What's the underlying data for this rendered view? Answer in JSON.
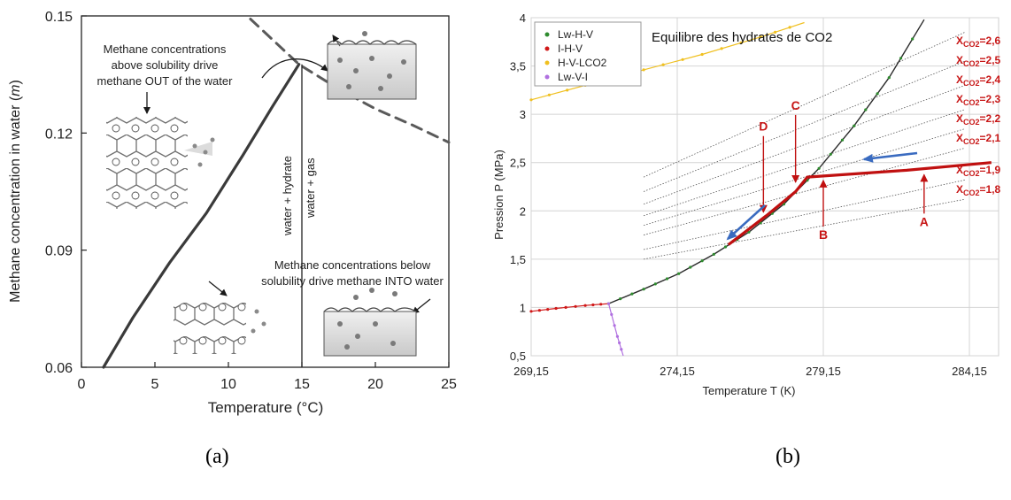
{
  "captions": {
    "left": "(a)",
    "right": "(b)"
  },
  "chart_data": [
    {
      "type": "line",
      "xlabel": "Temperature (°C)",
      "ylabel": "Methane concentration in water (",
      "ylabel_italic": "m",
      "ylabel_close": ")",
      "xlim": [
        0,
        25
      ],
      "ylim": [
        0.06,
        0.15
      ],
      "xticks": [
        0,
        5,
        10,
        15,
        20,
        25
      ],
      "yticks": [
        0.06,
        0.09,
        0.12,
        0.15
      ],
      "ytick_labels": [
        "0.06",
        "0.09",
        "0.12",
        "0.15"
      ],
      "series": [
        {
          "style": "solid",
          "x": [
            1.5,
            3.5,
            6,
            8.5,
            11,
            13,
            14.8
          ],
          "y": [
            0.06,
            0.0727,
            0.0868,
            0.0995,
            0.1144,
            0.1268,
            0.1376
          ]
        },
        {
          "style": "dashed",
          "x": [
            11.5,
            14.8,
            17.5,
            20,
            22.5,
            25
          ],
          "y": [
            0.1492,
            0.1376,
            0.1313,
            0.1262,
            0.1221,
            0.1176
          ]
        }
      ],
      "phase_labels": [
        "water + hydrate",
        "water + gas"
      ],
      "annotations": {
        "top": [
          "Methane concentrations",
          "above solubility drive",
          "methane OUT of the water"
        ],
        "bottom": [
          "Methane concentrations below",
          "solubility drive methane INTO water"
        ]
      },
      "colors": {
        "curve": "#3a3a3a",
        "dashed": "#5a5a5a"
      }
    },
    {
      "type": "line",
      "title": "Equilibre des hydrates de CO2",
      "xlabel": "Temperature T (K)",
      "ylabel": "Pression P (MPa)",
      "xlim": [
        269.15,
        285.15
      ],
      "ylim": [
        0.5,
        4
      ],
      "xticks": [
        269.15,
        274.15,
        279.15,
        284.15
      ],
      "xtick_labels": [
        "269,15",
        "274,15",
        "279,15",
        "284,15"
      ],
      "yticks": [
        0.5,
        1,
        1.5,
        2,
        2.5,
        3,
        3.5,
        4
      ],
      "ytick_labels": [
        "0,5",
        "1",
        "1,5",
        "2",
        "2,5",
        "3",
        "3,5",
        "4"
      ],
      "legend": {
        "position": "top-left",
        "entries": [
          {
            "label": "Lw-H-V",
            "color": "#2e8b2e"
          },
          {
            "label": "I-H-V",
            "color": "#d01818"
          },
          {
            "label": "H-V-LCO2",
            "color": "#f0c020"
          },
          {
            "label": "Lw-V-I",
            "color": "#b070e0"
          }
        ]
      },
      "series": [
        {
          "name": "Lw-H-V",
          "color": "#2e8b2e",
          "x": [
            271.8,
            273.0,
            274.2,
            275.4,
            276.6,
            277.8,
            279.0,
            280.2,
            281.4,
            282.6
          ],
          "y": [
            1.04,
            1.19,
            1.35,
            1.55,
            1.78,
            2.07,
            2.44,
            2.88,
            3.38,
            3.98
          ]
        },
        {
          "name": "I-H-V",
          "color": "#d01818",
          "x": [
            269.15,
            270.0,
            271.0,
            271.8
          ],
          "y": [
            0.96,
            0.99,
            1.02,
            1.04
          ]
        },
        {
          "name": "H-V-LCO2",
          "color": "#f0c020",
          "x": [
            269.15,
            271.0,
            273.0,
            275.0,
            277.0,
            278.5
          ],
          "y": [
            3.15,
            3.3,
            3.46,
            3.62,
            3.8,
            3.95
          ]
        },
        {
          "name": "Lw-V-I",
          "color": "#b070e0",
          "x": [
            271.8,
            272.1,
            272.3
          ],
          "y": [
            1.04,
            0.7,
            0.5
          ]
        }
      ],
      "isopleths": [
        {
          "label": "2,6",
          "x": [
            273.0,
            284.0
          ],
          "y": [
            2.35,
            3.85
          ]
        },
        {
          "label": "2,5",
          "x": [
            273.0,
            284.0
          ],
          "y": [
            2.2,
            3.55
          ]
        },
        {
          "label": "2,4",
          "x": [
            273.0,
            284.0
          ],
          "y": [
            2.07,
            3.3
          ]
        },
        {
          "label": "2,3",
          "x": [
            273.0,
            284.0
          ],
          "y": [
            1.95,
            3.05
          ]
        },
        {
          "label": "2,2",
          "x": [
            273.0,
            284.0
          ],
          "y": [
            1.85,
            2.85
          ]
        },
        {
          "label": "2,1",
          "x": [
            273.0,
            284.0
          ],
          "y": [
            1.75,
            2.65
          ]
        },
        {
          "label": "1,9",
          "x": [
            273.0,
            284.0
          ],
          "y": [
            1.6,
            2.32
          ]
        },
        {
          "label": "1,8",
          "x": [
            273.0,
            284.0
          ],
          "y": [
            1.5,
            2.12
          ]
        }
      ],
      "isopleth_prefix": "X",
      "isopleth_sub": "CO2",
      "isopleth_sep": "=",
      "path": {
        "color": "#c01010",
        "x": [
          275.9,
          277.2,
          278.2,
          278.6,
          282.0,
          284.9
        ],
        "y": [
          1.65,
          1.95,
          2.2,
          2.35,
          2.42,
          2.5
        ]
      },
      "points": [
        {
          "label": "A",
          "x": 282.6,
          "y": 2.43
        },
        {
          "label": "B",
          "x": 279.15,
          "y": 2.37
        },
        {
          "label": "C",
          "x": 278.2,
          "y": 2.26
        },
        {
          "label": "D",
          "x": 277.1,
          "y": 1.95
        }
      ],
      "arrows": {
        "color": "#3a6bc0"
      },
      "colors": {
        "text_red": "#c81818"
      }
    }
  ]
}
